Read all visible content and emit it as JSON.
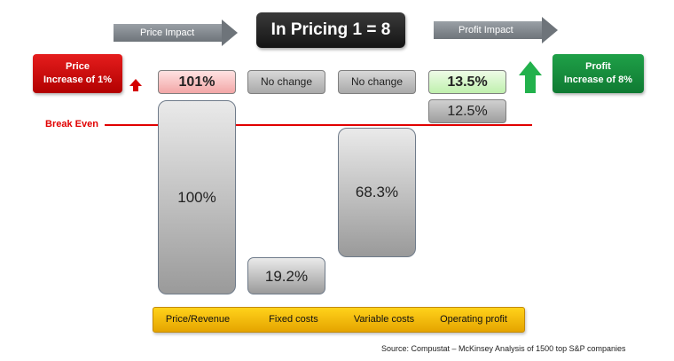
{
  "header": {
    "title": "In Pricing 1 = 8",
    "price_impact_label": "Price Impact",
    "profit_impact_label": "Profit Impact"
  },
  "left_box": {
    "line1": "Price",
    "line2": "Increase of 1%"
  },
  "right_box": {
    "line1": "Profit",
    "line2": "Increase of 8%"
  },
  "change_labels": [
    "101%",
    "No change",
    "No change",
    "13.5%"
  ],
  "break_even_label": "Break Even",
  "chart_data": {
    "type": "bar",
    "categories": [
      "Price/Revenue",
      "Fixed costs",
      "Variable costs",
      "Operating profit"
    ],
    "values": [
      100,
      19.2,
      68.3,
      12.5
    ],
    "value_labels": [
      "100%",
      "19.2%",
      "68.3%",
      "12.5%"
    ]
  },
  "source": "Source: Compustat – McKinsey Analysis of 1500 top S&P companies",
  "colors": {
    "red": "#e10000",
    "green": "#1fa048",
    "gold": "#ffd21a",
    "dark": "#1f1f1f"
  }
}
